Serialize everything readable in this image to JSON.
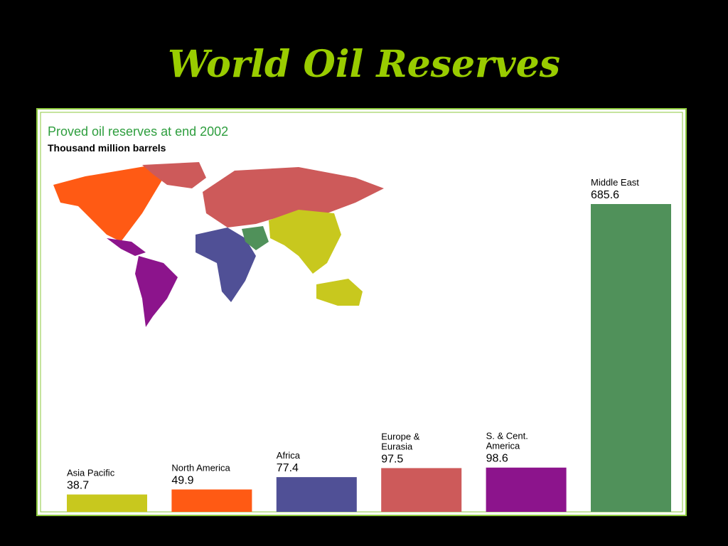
{
  "title": "World Oil Reserves",
  "chart_data": {
    "type": "bar",
    "title": "Proved oil reserves at end 2002",
    "subtitle": "Thousand million barrels",
    "categories": [
      "Asia Pacific",
      "North America",
      "Africa",
      "Europe & Eurasia",
      "S. & Cent. America",
      "Middle East"
    ],
    "values": [
      38.7,
      49.9,
      77.4,
      97.5,
      98.6,
      685.6
    ],
    "colors": [
      "#c8c81e",
      "#ff5a14",
      "#505096",
      "#cd5a5a",
      "#8c148c",
      "#50915a"
    ]
  }
}
